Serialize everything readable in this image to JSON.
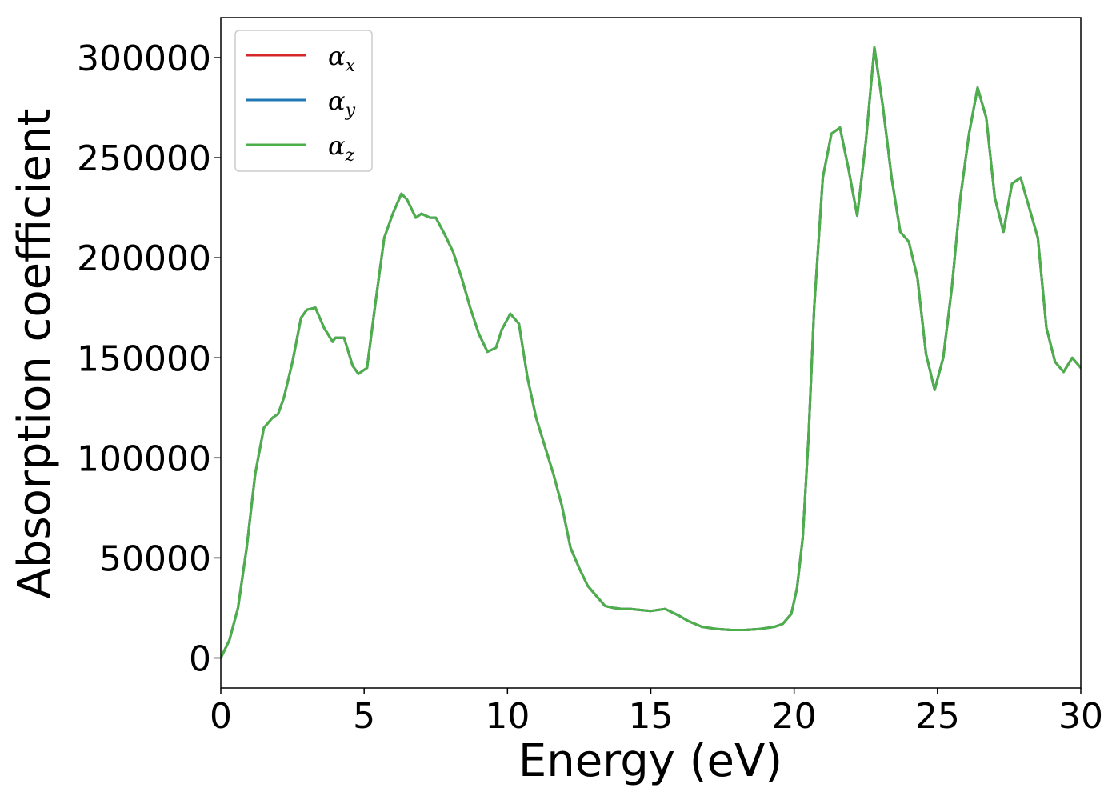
{
  "chart_data": {
    "type": "line",
    "title": "",
    "xlabel": "Energy (eV)",
    "ylabel": "Absorption coefficient",
    "xlim": [
      0,
      30
    ],
    "ylim": [
      -15000,
      320000
    ],
    "xticks": [
      0,
      5,
      10,
      15,
      20,
      25,
      30
    ],
    "xtick_labels": [
      "0",
      "5",
      "10",
      "15",
      "20",
      "25",
      "30"
    ],
    "yticks": [
      0,
      50000,
      100000,
      150000,
      200000,
      250000,
      300000
    ],
    "ytick_labels": [
      "0",
      "50000",
      "100000",
      "150000",
      "200000",
      "250000",
      "300000"
    ],
    "grid": false,
    "legend_position": "top-left",
    "x": [
      0,
      0.3,
      0.6,
      0.9,
      1.2,
      1.5,
      1.8,
      2.0,
      2.2,
      2.5,
      2.8,
      3.0,
      3.3,
      3.6,
      3.9,
      4.0,
      4.3,
      4.6,
      4.8,
      5.1,
      5.4,
      5.7,
      6.0,
      6.3,
      6.5,
      6.8,
      7.0,
      7.3,
      7.5,
      7.8,
      8.1,
      8.4,
      8.7,
      9.0,
      9.3,
      9.6,
      9.8,
      10.1,
      10.4,
      10.7,
      11.0,
      11.3,
      11.6,
      11.9,
      12.2,
      12.5,
      12.8,
      13.1,
      13.4,
      13.7,
      14.0,
      14.3,
      14.6,
      15.0,
      15.5,
      16.0,
      16.3,
      16.8,
      17.3,
      17.8,
      18.3,
      18.8,
      19.3,
      19.6,
      19.9,
      20.1,
      20.3,
      20.5,
      20.7,
      21.0,
      21.3,
      21.6,
      21.9,
      22.2,
      22.5,
      22.8,
      23.1,
      23.4,
      23.7,
      24.0,
      24.3,
      24.6,
      24.9,
      25.2,
      25.5,
      25.8,
      26.1,
      26.4,
      26.7,
      27.0,
      27.3,
      27.6,
      27.9,
      28.2,
      28.5,
      28.8,
      29.1,
      29.4,
      29.7,
      30.0
    ],
    "series": [
      {
        "name": "α_x",
        "color": "#d62728",
        "values": [
          0,
          9000,
          25000,
          55000,
          92000,
          115000,
          120000,
          122000,
          130000,
          148000,
          170000,
          174000,
          175000,
          165000,
          158000,
          160000,
          160000,
          146000,
          142000,
          145000,
          178000,
          210000,
          222000,
          232000,
          229000,
          220000,
          222000,
          220000,
          220000,
          212000,
          203000,
          190000,
          175000,
          162000,
          153000,
          155000,
          164000,
          172000,
          167000,
          140000,
          120000,
          106000,
          92000,
          76000,
          55000,
          45000,
          36000,
          31000,
          26000,
          25000,
          24500,
          24500,
          24000,
          23500,
          24500,
          21000,
          18500,
          15500,
          14500,
          14000,
          14000,
          14500,
          15500,
          17000,
          22000,
          35000,
          60000,
          110000,
          175000,
          240000,
          262000,
          265000,
          244000,
          221000,
          258000,
          305000,
          275000,
          240000,
          213000,
          208000,
          190000,
          152000,
          134000,
          150000,
          185000,
          230000,
          262000,
          285000,
          270000,
          230000,
          213000,
          237000,
          240000,
          225000,
          210000,
          165000,
          148000,
          143000,
          150000,
          145000
        ]
      },
      {
        "name": "α_y",
        "color": "#1f77b4",
        "values": [
          0,
          9000,
          25000,
          55000,
          92000,
          115000,
          120000,
          122000,
          130000,
          148000,
          170000,
          174000,
          175000,
          165000,
          158000,
          160000,
          160000,
          146000,
          142000,
          145000,
          178000,
          210000,
          222000,
          232000,
          229000,
          220000,
          222000,
          220000,
          220000,
          212000,
          203000,
          190000,
          175000,
          162000,
          153000,
          155000,
          164000,
          172000,
          167000,
          140000,
          120000,
          106000,
          92000,
          76000,
          55000,
          45000,
          36000,
          31000,
          26000,
          25000,
          24500,
          24500,
          24000,
          23500,
          24500,
          21000,
          18500,
          15500,
          14500,
          14000,
          14000,
          14500,
          15500,
          17000,
          22000,
          35000,
          60000,
          110000,
          175000,
          240000,
          262000,
          265000,
          244000,
          221000,
          258000,
          305000,
          275000,
          240000,
          213000,
          208000,
          190000,
          152000,
          134000,
          150000,
          185000,
          230000,
          262000,
          285000,
          270000,
          230000,
          213000,
          237000,
          240000,
          225000,
          210000,
          165000,
          148000,
          143000,
          150000,
          145000
        ]
      },
      {
        "name": "α_z",
        "color": "#4daf4a",
        "values": [
          0,
          9000,
          25000,
          55000,
          92000,
          115000,
          120000,
          122000,
          130000,
          148000,
          170000,
          174000,
          175000,
          165000,
          158000,
          160000,
          160000,
          146000,
          142000,
          145000,
          178000,
          210000,
          222000,
          232000,
          229000,
          220000,
          222000,
          220000,
          220000,
          212000,
          203000,
          190000,
          175000,
          162000,
          153000,
          155000,
          164000,
          172000,
          167000,
          140000,
          120000,
          106000,
          92000,
          76000,
          55000,
          45000,
          36000,
          31000,
          26000,
          25000,
          24500,
          24500,
          24000,
          23500,
          24500,
          21000,
          18500,
          15500,
          14500,
          14000,
          14000,
          14500,
          15500,
          17000,
          22000,
          35000,
          60000,
          110000,
          175000,
          240000,
          262000,
          265000,
          244000,
          221000,
          258000,
          305000,
          275000,
          240000,
          213000,
          208000,
          190000,
          152000,
          134000,
          150000,
          185000,
          230000,
          262000,
          285000,
          270000,
          230000,
          213000,
          237000,
          240000,
          225000,
          210000,
          165000,
          148000,
          143000,
          150000,
          145000
        ]
      }
    ],
    "legend": [
      {
        "symbol": "α",
        "sub": "x",
        "color": "#d62728"
      },
      {
        "symbol": "α",
        "sub": "y",
        "color": "#1f77b4"
      },
      {
        "symbol": "α",
        "sub": "z",
        "color": "#4daf4a"
      }
    ]
  }
}
